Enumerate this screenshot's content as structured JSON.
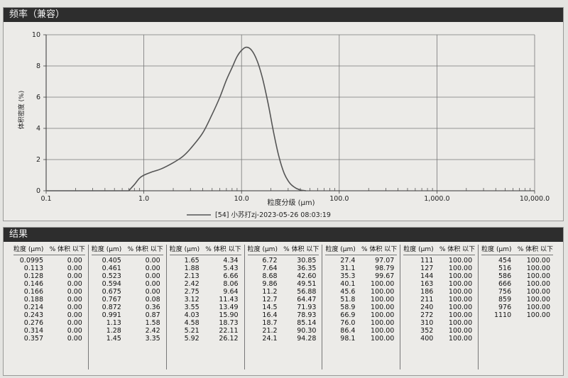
{
  "chart": {
    "panel_title": "频率（兼容）",
    "legend_label": "[54] 小苏打zj-2023-05-26 08:03:19",
    "xlabel": "粒度分级 (μm)",
    "ylabel": "体积密度 (%)",
    "x_tick_labels": [
      "0.1",
      "1.0",
      "10.0",
      "100.0",
      "1,000.0",
      "10,000.0"
    ],
    "y_tick_labels": [
      "0",
      "2",
      "4",
      "6",
      "8",
      "10"
    ],
    "line_color": "#555555"
  },
  "chart_data": {
    "type": "line",
    "title": "频率（兼容）",
    "xlabel": "粒度分级 (μm)",
    "ylabel": "体积密度 (%)",
    "xscale": "log",
    "xlim": [
      0.1,
      10000
    ],
    "ylim": [
      0,
      10
    ],
    "grid": true,
    "legend_placement": "bottom-center",
    "series": [
      {
        "name": "[54] 小苏打zj-2023-05-26 08:03:19",
        "x": [
          0.7,
          0.8,
          0.9,
          1.0,
          1.2,
          1.5,
          2.0,
          2.5,
          3.0,
          4.0,
          5.0,
          6.0,
          7.0,
          8.0,
          9.0,
          10.0,
          11.2,
          12.7,
          14.5,
          16.4,
          18.7,
          21.2,
          24.1,
          27.4,
          31.1,
          35.3,
          40.1,
          45.6
        ],
        "values": [
          0.0,
          0.4,
          0.8,
          1.0,
          1.2,
          1.4,
          1.8,
          2.2,
          2.7,
          3.7,
          4.9,
          6.0,
          7.1,
          7.9,
          8.6,
          9.0,
          9.2,
          9.0,
          8.3,
          7.2,
          5.6,
          3.8,
          2.2,
          1.1,
          0.5,
          0.2,
          0.05,
          0.0
        ]
      }
    ]
  },
  "results": {
    "title": "结果",
    "col_header_size": "粒度 (μm)",
    "col_header_pct": "% 体积 以下",
    "columns": [
      [
        [
          "0.0995",
          "0.00"
        ],
        [
          "0.113",
          "0.00"
        ],
        [
          "0.128",
          "0.00"
        ],
        [
          "0.146",
          "0.00"
        ],
        [
          "0.166",
          "0.00"
        ],
        [
          "0.188",
          "0.00"
        ],
        [
          "0.214",
          "0.00"
        ],
        [
          "0.243",
          "0.00"
        ],
        [
          "0.276",
          "0.00"
        ],
        [
          "0.314",
          "0.00"
        ],
        [
          "0.357",
          "0.00"
        ]
      ],
      [
        [
          "0.405",
          "0.00"
        ],
        [
          "0.461",
          "0.00"
        ],
        [
          "0.523",
          "0.00"
        ],
        [
          "0.594",
          "0.00"
        ],
        [
          "0.675",
          "0.00"
        ],
        [
          "0.767",
          "0.08"
        ],
        [
          "0.872",
          "0.36"
        ],
        [
          "0.991",
          "0.87"
        ],
        [
          "1.13",
          "1.58"
        ],
        [
          "1.28",
          "2.42"
        ],
        [
          "1.45",
          "3.35"
        ]
      ],
      [
        [
          "1.65",
          "4.34"
        ],
        [
          "1.88",
          "5.43"
        ],
        [
          "2.13",
          "6.66"
        ],
        [
          "2.42",
          "8.06"
        ],
        [
          "2.75",
          "9.64"
        ],
        [
          "3.12",
          "11.43"
        ],
        [
          "3.55",
          "13.49"
        ],
        [
          "4.03",
          "15.90"
        ],
        [
          "4.58",
          "18.73"
        ],
        [
          "5.21",
          "22.11"
        ],
        [
          "5.92",
          "26.12"
        ]
      ],
      [
        [
          "6.72",
          "30.85"
        ],
        [
          "7.64",
          "36.35"
        ],
        [
          "8.68",
          "42.60"
        ],
        [
          "9.86",
          "49.51"
        ],
        [
          "11.2",
          "56.88"
        ],
        [
          "12.7",
          "64.47"
        ],
        [
          "14.5",
          "71.93"
        ],
        [
          "16.4",
          "78.93"
        ],
        [
          "18.7",
          "85.14"
        ],
        [
          "21.2",
          "90.30"
        ],
        [
          "24.1",
          "94.28"
        ]
      ],
      [
        [
          "27.4",
          "97.07"
        ],
        [
          "31.1",
          "98.79"
        ],
        [
          "35.3",
          "99.67"
        ],
        [
          "40.1",
          "100.00"
        ],
        [
          "45.6",
          "100.00"
        ],
        [
          "51.8",
          "100.00"
        ],
        [
          "58.9",
          "100.00"
        ],
        [
          "66.9",
          "100.00"
        ],
        [
          "76.0",
          "100.00"
        ],
        [
          "86.4",
          "100.00"
        ],
        [
          "98.1",
          "100.00"
        ]
      ],
      [
        [
          "111",
          "100.00"
        ],
        [
          "127",
          "100.00"
        ],
        [
          "144",
          "100.00"
        ],
        [
          "163",
          "100.00"
        ],
        [
          "186",
          "100.00"
        ],
        [
          "211",
          "100.00"
        ],
        [
          "240",
          "100.00"
        ],
        [
          "272",
          "100.00"
        ],
        [
          "310",
          "100.00"
        ],
        [
          "352",
          "100.00"
        ],
        [
          "400",
          "100.00"
        ]
      ],
      [
        [
          "454",
          "100.00"
        ],
        [
          "516",
          "100.00"
        ],
        [
          "586",
          "100.00"
        ],
        [
          "666",
          "100.00"
        ],
        [
          "756",
          "100.00"
        ],
        [
          "859",
          "100.00"
        ],
        [
          "976",
          "100.00"
        ],
        [
          "1110",
          "100.00"
        ]
      ]
    ]
  }
}
